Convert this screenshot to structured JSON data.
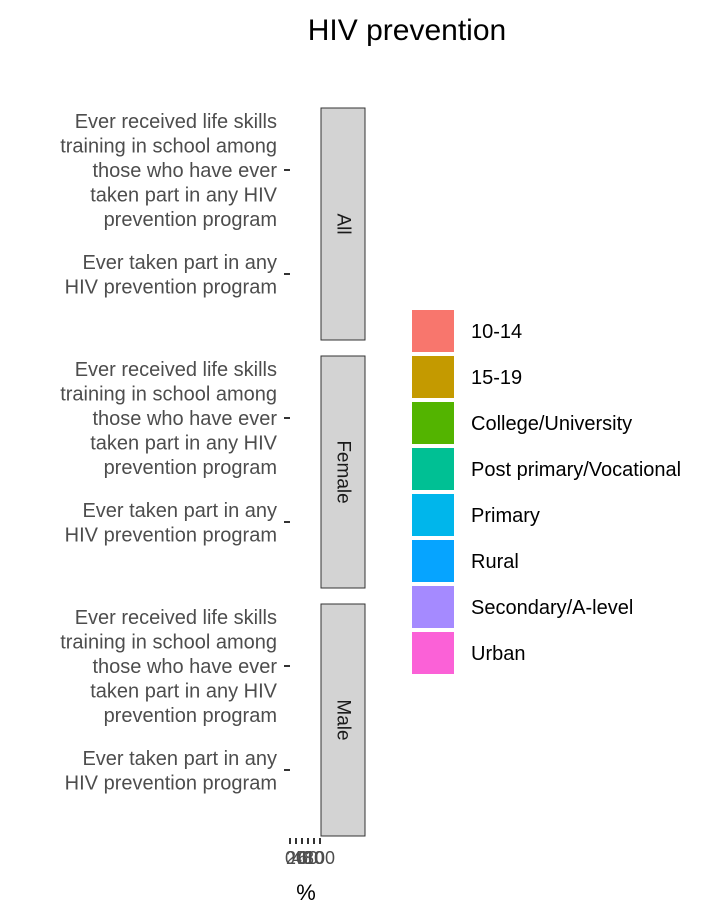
{
  "chart_data": {
    "type": "bar",
    "orientation": "horizontal",
    "title": "HIV prevention",
    "xlabel": "%",
    "ylabel": "",
    "x_tick_labels": [
      "0",
      "20",
      "40",
      "60",
      "80",
      "100"
    ],
    "xlim": [
      0,
      100
    ],
    "facets": [
      "All",
      "Female",
      "Male"
    ],
    "categories": [
      [
        "Ever received life skills",
        "training in school among",
        "those who have ever",
        "taken part in any HIV",
        "prevention program"
      ],
      [
        "Ever taken part in any",
        "HIV prevention program"
      ]
    ],
    "legend": {
      "position": "right",
      "items": [
        {
          "label": "10-14",
          "color": "#F8766D"
        },
        {
          "label": "15-19",
          "color": "#C49A00"
        },
        {
          "label": "College/University",
          "color": "#53B400"
        },
        {
          "label": "Post primary/Vocational",
          "color": "#00C094"
        },
        {
          "label": "Primary",
          "color": "#00B6EB"
        },
        {
          "label": "Rural",
          "color": "#06A4FF"
        },
        {
          "label": "Secondary/A-level",
          "color": "#A58AFF"
        },
        {
          "label": "Urban",
          "color": "#FB61D7"
        }
      ]
    },
    "strip_fill": "#D3D3D3",
    "grid": false
  }
}
